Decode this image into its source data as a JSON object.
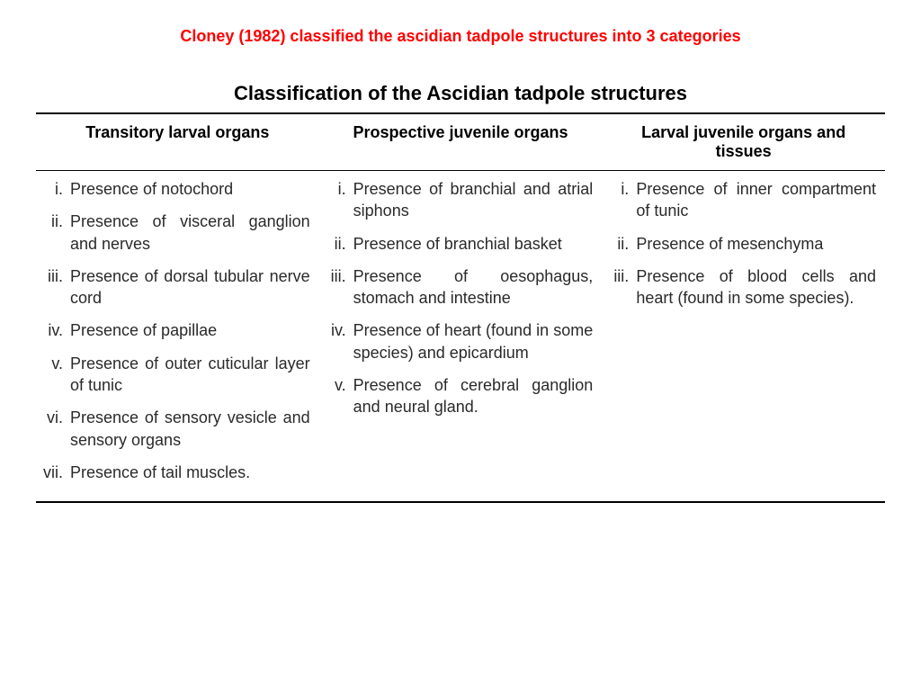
{
  "page": {
    "heading": "Cloney (1982) classified the ascidian tadpole structures into 3 categories",
    "heading_color": "#ff0000",
    "heading_fontsize": 18,
    "table_title": "Classification of the Ascidian tadpole structures",
    "table_title_fontsize": 22,
    "body_fontsize": 18,
    "text_color": "#2a2a2a",
    "rule_color": "#000000",
    "background": "#ffffff"
  },
  "columns": [
    {
      "header": "Transitory larval organs"
    },
    {
      "header": "Prospective juvenile organs"
    },
    {
      "header": "Larval juvenile organs and tissues"
    }
  ],
  "col1_items": [
    {
      "n": "i.",
      "t": "Presence of notochord"
    },
    {
      "n": "ii.",
      "t": "Presence of visceral ganglion and nerves"
    },
    {
      "n": "iii.",
      "t": "Presence of dorsal tubular nerve cord"
    },
    {
      "n": "iv.",
      "t": "Presence of papillae"
    },
    {
      "n": "v.",
      "t": "Presence of outer cuticular layer of tunic"
    },
    {
      "n": "vi.",
      "t": "Presence of sensory vesicle and sensory organs"
    },
    {
      "n": "vii.",
      "t": "Presence of tail muscles."
    }
  ],
  "col2_items": [
    {
      "n": "i.",
      "t": "Presence of branchial and atrial siphons"
    },
    {
      "n": "ii.",
      "t": "Presence of branchial basket"
    },
    {
      "n": "iii.",
      "t": "Presence of oesophagus, stomach and intestine"
    },
    {
      "n": "iv.",
      "t": "Presence of heart (found in some species) and epicardium"
    },
    {
      "n": "v.",
      "t": "Presence of cerebral ganglion and neural gland."
    }
  ],
  "col3_items": [
    {
      "n": "i.",
      "t": "Presence of inner compartment of tunic"
    },
    {
      "n": "ii.",
      "t": "Presence of mesenchyma"
    },
    {
      "n": "iii.",
      "t": "Presence of blood cells and heart (found in some species)."
    }
  ]
}
